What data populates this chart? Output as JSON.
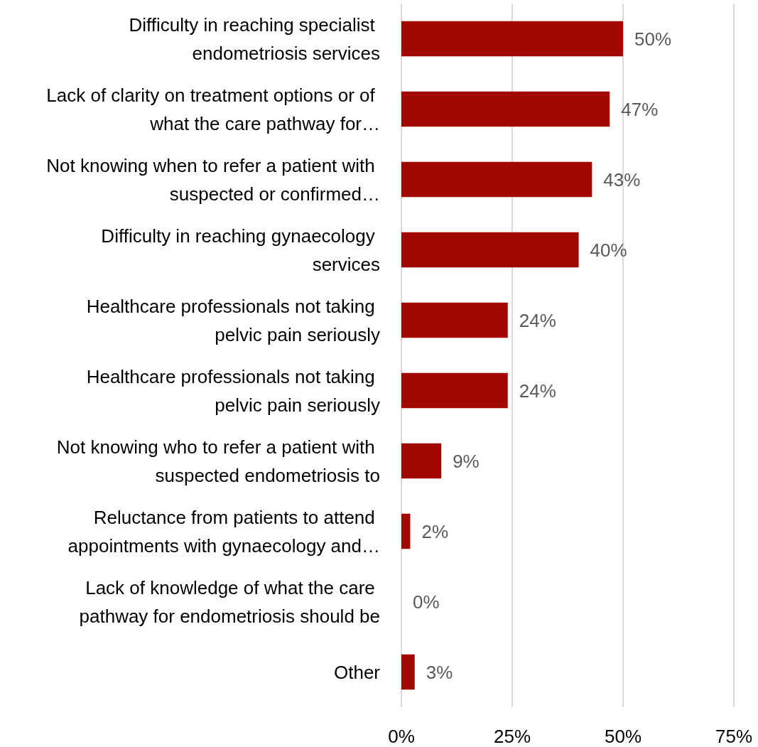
{
  "chart_data": {
    "type": "bar",
    "orientation": "horizontal",
    "categories": [
      "Difficulty in reaching specialist endometriosis services",
      "Lack of clarity on treatment options or of what the care pathway for…",
      "Not knowing when to refer a patient with suspected or confirmed…",
      "Difficulty in reaching gynaecology services",
      "Healthcare professionals not taking pelvic pain seriously",
      "Healthcare professionals not taking pelvic pain seriously",
      "Not knowing who to refer a patient with suspected endometriosis to",
      "Reluctance from patients to attend appointments with gynaecology and…",
      "Lack of knowledge of what the care pathway for endometriosis should be",
      "Other"
    ],
    "values": [
      50,
      47,
      43,
      40,
      24,
      24,
      9,
      2,
      0,
      3
    ],
    "value_labels": [
      "50%",
      "47%",
      "43%",
      "40%",
      "24%",
      "24%",
      "9%",
      "2%",
      "0%",
      "3%"
    ],
    "color": "#a00800",
    "xlim": [
      0,
      75
    ],
    "xticks": [
      {
        "value": 0,
        "label": "0%"
      },
      {
        "value": 25,
        "label": "25%"
      },
      {
        "value": 50,
        "label": "50%"
      },
      {
        "value": 75,
        "label": "75%"
      }
    ],
    "grid": "x"
  }
}
